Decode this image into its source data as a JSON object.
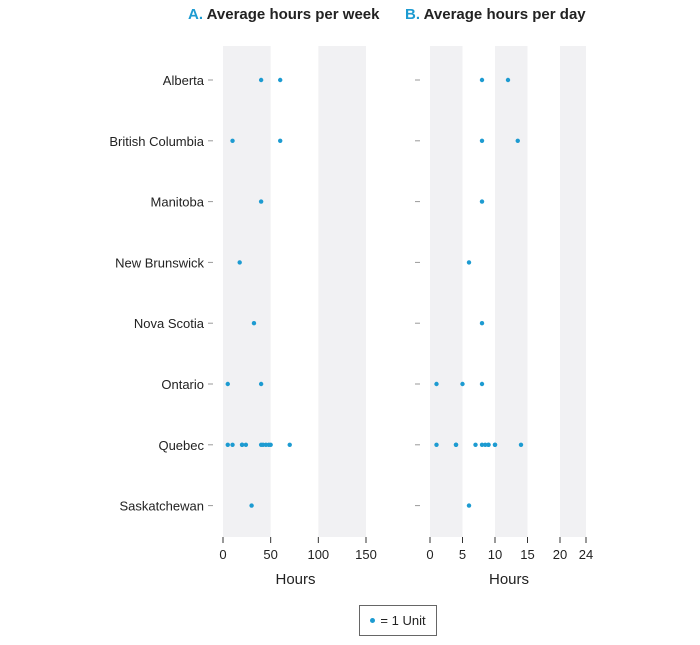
{
  "chart_data": [
    {
      "type": "scatter",
      "panel_letter": "A.",
      "title": "Average hours per week",
      "xlabel": "Hours",
      "xlim": [
        0,
        150
      ],
      "xticks": [
        0,
        50,
        100,
        150
      ],
      "shaded_bands": [
        [
          0,
          50
        ],
        [
          100,
          150
        ]
      ],
      "categories": [
        "Alberta",
        "British Columbia",
        "Manitoba",
        "New Brunswick",
        "Nova Scotia",
        "Ontario",
        "Quebec",
        "Saskatchewan"
      ],
      "points": {
        "Alberta": [
          40,
          60
        ],
        "British Columbia": [
          10,
          60
        ],
        "Manitoba": [
          40
        ],
        "New Brunswick": [
          17.5
        ],
        "Nova Scotia": [
          32.5
        ],
        "Ontario": [
          5,
          40
        ],
        "Quebec": [
          5,
          10,
          20,
          20,
          24,
          40,
          42,
          45,
          48,
          50,
          70
        ],
        "Saskatchewan": [
          30
        ]
      }
    },
    {
      "type": "scatter",
      "panel_letter": "B.",
      "title": "Average hours per day",
      "xlabel": "Hours",
      "xlim": [
        0,
        24
      ],
      "xticks": [
        0,
        5,
        10,
        15,
        20,
        24
      ],
      "shaded_bands": [
        [
          0,
          5
        ],
        [
          10,
          15
        ],
        [
          20,
          24
        ]
      ],
      "categories": [
        "Alberta",
        "British Columbia",
        "Manitoba",
        "New Brunswick",
        "Nova Scotia",
        "Ontario",
        "Quebec",
        "Saskatchewan"
      ],
      "points": {
        "Alberta": [
          8,
          12
        ],
        "British Columbia": [
          8,
          13.5
        ],
        "Manitoba": [
          8
        ],
        "New Brunswick": [
          6
        ],
        "Nova Scotia": [
          8
        ],
        "Ontario": [
          1,
          5,
          8
        ],
        "Quebec": [
          1,
          4,
          4,
          7,
          8,
          8.5,
          9,
          9,
          10,
          10,
          14
        ],
        "Saskatchewan": [
          6
        ]
      }
    }
  ],
  "legend": {
    "label": "= 1 Unit"
  },
  "colors": {
    "dot": "#1d9bd1",
    "title_letter": "#1d9bd1",
    "band": "#f1f1f3",
    "tick": "#9a9a9a"
  }
}
